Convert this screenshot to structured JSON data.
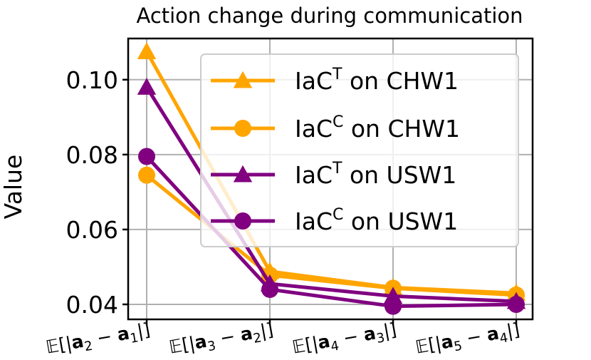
{
  "chart_data": {
    "type": "line",
    "title": "Action change during communication",
    "xlabel": "",
    "ylabel": "Value",
    "categories": [
      "𝔼[|a₂ − a₁|]",
      "𝔼[|a₃ − a₂|]",
      "𝔼[|a₄ − a₃|]",
      "𝔼[|a₅ − a₄|]"
    ],
    "xtick_labels": [
      {
        "pre": "𝔼[|",
        "a": "a",
        "i": "2",
        "mid": " − ",
        "b": "a",
        "j": "1",
        "post": "|]"
      },
      {
        "pre": "𝔼[|",
        "a": "a",
        "i": "3",
        "mid": " − ",
        "b": "a",
        "j": "2",
        "post": "|]"
      },
      {
        "pre": "𝔼[|",
        "a": "a",
        "i": "4",
        "mid": " − ",
        "b": "a",
        "j": "3",
        "post": "|]"
      },
      {
        "pre": "𝔼[|",
        "a": "a",
        "i": "5",
        "mid": " − ",
        "b": "a",
        "j": "4",
        "post": "|]"
      }
    ],
    "ylim": [
      0.036,
      0.111
    ],
    "yticks": [
      0.04,
      0.06,
      0.08,
      0.1
    ],
    "ytick_labels": [
      "0.04",
      "0.06",
      "0.08",
      "0.10"
    ],
    "grid": true,
    "legend_position": "upper-right",
    "series": [
      {
        "name": "IaC^T on CHW1",
        "base": "IaC",
        "sup": "T",
        "suffix": " on CHW1",
        "color": "#FFA500",
        "marker": "triangle",
        "values": [
          0.1075,
          0.0488,
          0.0445,
          0.043
        ]
      },
      {
        "name": "IaC^C on CHW1",
        "base": "IaC",
        "sup": "C",
        "suffix": " on CHW1",
        "color": "#FFA500",
        "marker": "circle",
        "values": [
          0.0745,
          0.0478,
          0.0443,
          0.0425
        ]
      },
      {
        "name": "IaC^T on USW1",
        "base": "IaC",
        "sup": "T",
        "suffix": " on USW1",
        "color": "#800080",
        "marker": "triangle",
        "values": [
          0.098,
          0.0455,
          0.0422,
          0.0408
        ]
      },
      {
        "name": "IaC^C on USW1",
        "base": "IaC",
        "sup": "C",
        "suffix": " on USW1",
        "color": "#800080",
        "marker": "circle",
        "values": [
          0.0795,
          0.044,
          0.0395,
          0.04
        ]
      }
    ]
  }
}
